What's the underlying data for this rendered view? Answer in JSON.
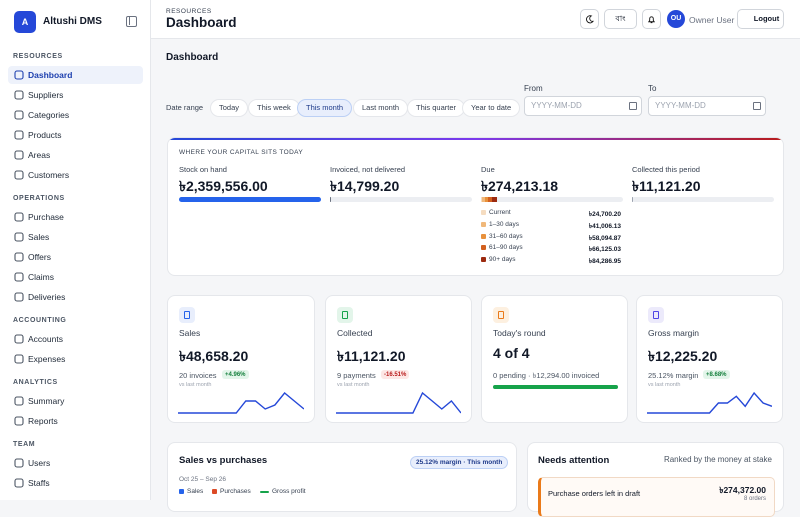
{
  "sidebar": {
    "brand_initial": "A",
    "brand": "Altushi DMS",
    "active": 0,
    "sections": [
      {
        "title": "RESOURCES",
        "items": [
          "Dashboard",
          "Suppliers",
          "Categories",
          "Products",
          "Areas",
          "Customers"
        ]
      },
      {
        "title": "OPERATIONS",
        "items": [
          "Purchase",
          "Sales",
          "Offers",
          "Claims",
          "Deliveries"
        ]
      },
      {
        "title": "ACCOUNTING",
        "items": [
          "Accounts",
          "Expenses"
        ]
      },
      {
        "title": "ANALYTICS",
        "items": [
          "Summary",
          "Reports"
        ]
      },
      {
        "title": "TEAM",
        "items": [
          "Users",
          "Staffs"
        ]
      }
    ]
  },
  "header": {
    "eyebrow": "RESOURCES",
    "title": "Dashboard",
    "language": "বাং",
    "avatar": "OU",
    "user": "Owner User",
    "logout": "Logout"
  },
  "page": {
    "title": "Dashboard",
    "date_range": {
      "label": "Date range",
      "active": 2,
      "options": [
        "Today",
        "This week",
        "This month",
        "Last month",
        "This quarter",
        "Year to date"
      ],
      "from": {
        "label": "From",
        "placeholder": "YYYY-MM-DD"
      },
      "to": {
        "label": "To",
        "placeholder": "YYYY-MM-DD"
      }
    }
  },
  "capital": {
    "title": "WHERE YOUR CAPITAL SITS TODAY",
    "columns": [
      {
        "label": "Stock on hand",
        "amount": {
          "value": 2359556,
          "label": "৳2,359,556.00"
        },
        "color": "#2563eb"
      },
      {
        "label": "Invoiced, not delivered",
        "amount": {
          "value": 14799.2,
          "label": "৳14,799.20"
        },
        "color": "#6b7280"
      },
      {
        "label": "Due",
        "amount": {
          "value": 274213.18,
          "label": "৳274,213.18"
        },
        "color": "#e8913c"
      },
      {
        "label": "Collected this period",
        "amount": {
          "value": 11121.2,
          "label": "৳11,121.20"
        },
        "color": "#9ca3af"
      }
    ],
    "aging": [
      {
        "label": "Current",
        "amount": {
          "value": 24700.2,
          "label": "৳24,700.20"
        },
        "color": "#f5dcc0"
      },
      {
        "label": "1–30 days",
        "amount": {
          "value": 41006.13,
          "label": "৳41,006.13"
        },
        "color": "#f0b87a"
      },
      {
        "label": "31–60 days",
        "amount": {
          "value": 58094.87,
          "label": "৳58,094.87"
        },
        "color": "#e8913c"
      },
      {
        "label": "61–90 days",
        "amount": {
          "value": 66125.03,
          "label": "৳66,125.03"
        },
        "color": "#d2601f"
      },
      {
        "label": "90+ days",
        "amount": {
          "value": 84286.95,
          "label": "৳84,286.95"
        },
        "color": "#9c2a0f"
      }
    ]
  },
  "kpis": [
    {
      "label": "Sales",
      "value": "৳48,658.20",
      "count": "20 invoices",
      "change": "+4.96%",
      "compare": "vs last month",
      "spark": [
        1,
        1,
        1,
        1,
        1,
        1,
        1,
        4,
        4,
        2,
        3,
        6,
        4,
        2
      ]
    },
    {
      "label": "Collected",
      "value": "৳11,121.20",
      "count": "9 payments",
      "change": "-16.51%",
      "compare": "vs last month",
      "spark": [
        1,
        1,
        1,
        1,
        1,
        1,
        1,
        1,
        1,
        6,
        4,
        2,
        4,
        1
      ]
    },
    {
      "label": "Today's round",
      "value": "4 of 4",
      "count": "0 pending · ৳12,294.00 invoiced",
      "round": {
        "done": 4,
        "total": 4
      }
    },
    {
      "label": "Gross margin",
      "value": "৳12,225.20",
      "count": "25.12% margin",
      "change": "+8.68%",
      "compare": "vs last month",
      "spark": [
        1,
        1,
        1,
        1,
        1,
        1,
        1,
        1,
        4,
        4,
        6,
        3,
        7,
        4,
        3
      ]
    }
  ],
  "sales_vs_purchases": {
    "title": "Sales vs purchases",
    "badge": "25.12% margin · This month",
    "period": "Oct 25 – Sep 26",
    "legend": [
      {
        "name": "Sales",
        "color": "#2563eb"
      },
      {
        "name": "Purchases",
        "color": "#dc4a26"
      },
      {
        "name": "Gross profit",
        "color": "#16a34a"
      }
    ]
  },
  "attention": {
    "title": "Needs attention",
    "subtitle": "Ranked by the money at stake",
    "items": [
      {
        "label": "Purchase orders left in draft",
        "amount": "৳274,372.00",
        "count": "8 orders"
      }
    ]
  }
}
